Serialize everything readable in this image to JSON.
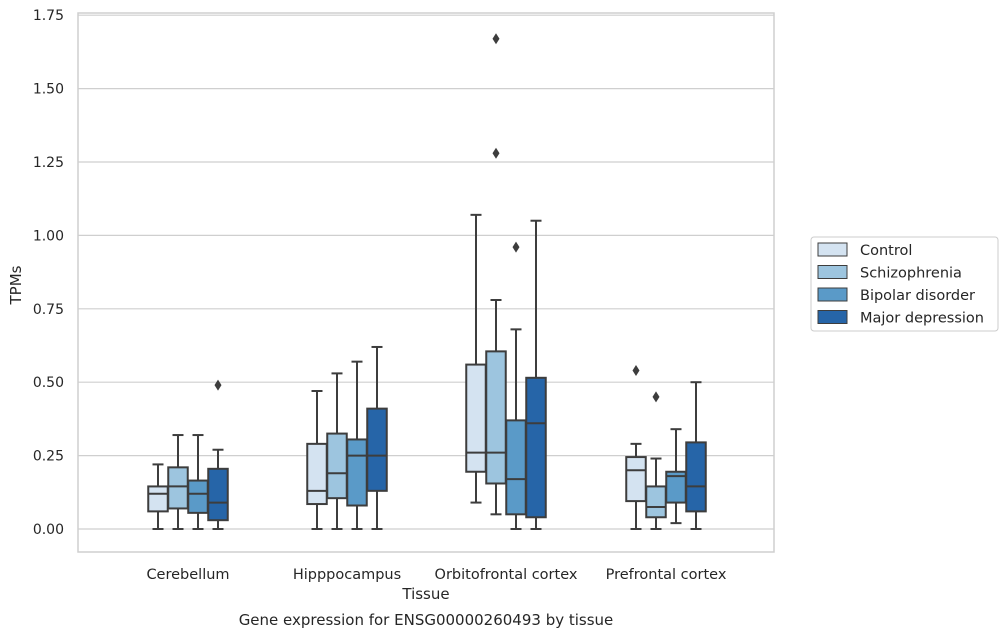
{
  "chart_data": {
    "type": "box",
    "title": "",
    "caption": "Gene expression for ENSG00000260493 by tissue",
    "xlabel": "Tissue",
    "ylabel": "TPMs",
    "ylim": [
      -0.08,
      1.755
    ],
    "yticks": [
      0.0,
      0.25,
      0.5,
      0.75,
      1.0,
      1.25,
      1.5,
      1.75
    ],
    "ytick_labels": [
      "0.00",
      "0.25",
      "0.50",
      "0.75",
      "1.00",
      "1.25",
      "1.50",
      "1.75"
    ],
    "grid": "horizontal",
    "legend_position": "right",
    "categories": [
      "Cerebellum",
      "Hipppocampus",
      "Orbitofrontal cortex",
      "Prefrontal cortex"
    ],
    "series": [
      {
        "name": "Control",
        "color": "#d4e3f1",
        "boxes": [
          {
            "whislo": 0.0,
            "q1": 0.06,
            "med": 0.12,
            "q3": 0.145,
            "whishi": 0.22,
            "fliers": []
          },
          {
            "whislo": 0.0,
            "q1": 0.085,
            "med": 0.13,
            "q3": 0.29,
            "whishi": 0.47,
            "fliers": []
          },
          {
            "whislo": 0.09,
            "q1": 0.195,
            "med": 0.26,
            "q3": 0.56,
            "whishi": 1.07,
            "fliers": []
          },
          {
            "whislo": 0.0,
            "q1": 0.095,
            "med": 0.2,
            "q3": 0.245,
            "whishi": 0.29,
            "fliers": [
              0.54
            ]
          }
        ]
      },
      {
        "name": "Schizophrenia",
        "color": "#9dc5df",
        "boxes": [
          {
            "whislo": 0.0,
            "q1": 0.07,
            "med": 0.145,
            "q3": 0.21,
            "whishi": 0.32,
            "fliers": []
          },
          {
            "whislo": 0.0,
            "q1": 0.105,
            "med": 0.19,
            "q3": 0.325,
            "whishi": 0.53,
            "fliers": []
          },
          {
            "whislo": 0.05,
            "q1": 0.155,
            "med": 0.26,
            "q3": 0.605,
            "whishi": 0.78,
            "fliers": [
              1.28,
              1.67
            ]
          },
          {
            "whislo": 0.0,
            "q1": 0.04,
            "med": 0.075,
            "q3": 0.145,
            "whishi": 0.24,
            "fliers": [
              0.45
            ]
          }
        ]
      },
      {
        "name": "Bipolar disorder",
        "color": "#5a9ac8",
        "boxes": [
          {
            "whislo": 0.0,
            "q1": 0.055,
            "med": 0.12,
            "q3": 0.165,
            "whishi": 0.32,
            "fliers": []
          },
          {
            "whislo": 0.0,
            "q1": 0.08,
            "med": 0.25,
            "q3": 0.305,
            "whishi": 0.57,
            "fliers": []
          },
          {
            "whislo": 0.0,
            "q1": 0.05,
            "med": 0.17,
            "q3": 0.37,
            "whishi": 0.68,
            "fliers": [
              0.96
            ]
          },
          {
            "whislo": 0.02,
            "q1": 0.09,
            "med": 0.18,
            "q3": 0.195,
            "whishi": 0.34,
            "fliers": []
          }
        ]
      },
      {
        "name": "Major depression",
        "color": "#2665a8",
        "boxes": [
          {
            "whislo": 0.0,
            "q1": 0.03,
            "med": 0.09,
            "q3": 0.205,
            "whishi": 0.27,
            "fliers": [
              0.49
            ]
          },
          {
            "whislo": 0.0,
            "q1": 0.13,
            "med": 0.25,
            "q3": 0.41,
            "whishi": 0.62,
            "fliers": []
          },
          {
            "whislo": 0.0,
            "q1": 0.04,
            "med": 0.36,
            "q3": 0.515,
            "whishi": 1.05,
            "fliers": []
          },
          {
            "whislo": 0.0,
            "q1": 0.06,
            "med": 0.145,
            "q3": 0.295,
            "whishi": 0.5,
            "fliers": []
          }
        ]
      }
    ]
  }
}
